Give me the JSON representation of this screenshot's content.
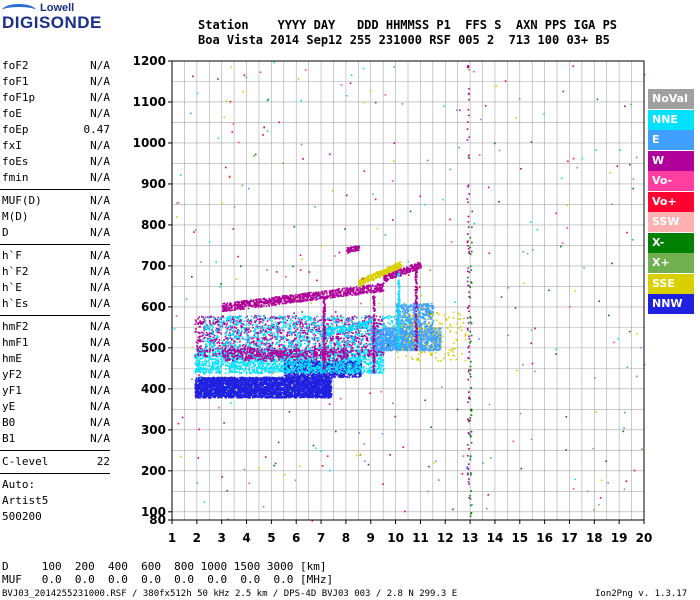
{
  "logo": {
    "line1": "Lowell",
    "line2": "DIGISONDE"
  },
  "header": {
    "line1": "Station    YYYY DAY   DDD HHMMSS P1  FFS S  AXN PPS IGA PS",
    "line2": "Boa Vista 2014 Sep12 255 231000 RSF 005 2  713 100 03+ B5"
  },
  "params_group1": [
    {
      "name": "foF2",
      "value": "N/A"
    },
    {
      "name": "foF1",
      "value": "N/A"
    },
    {
      "name": "foF1p",
      "value": "N/A"
    },
    {
      "name": "foE",
      "value": "N/A"
    },
    {
      "name": "foEp",
      "value": "0.47"
    },
    {
      "name": "fxI",
      "value": "N/A"
    },
    {
      "name": "foEs",
      "value": "N/A"
    },
    {
      "name": "fmin",
      "value": "N/A"
    }
  ],
  "params_group2": [
    {
      "name": "MUF(D)",
      "value": "N/A"
    },
    {
      "name": "M(D)",
      "value": "N/A"
    },
    {
      "name": "D",
      "value": "N/A"
    }
  ],
  "params_group3": [
    {
      "name": "h`F",
      "value": "N/A"
    },
    {
      "name": "h`F2",
      "value": "N/A"
    },
    {
      "name": "h`E",
      "value": "N/A"
    },
    {
      "name": "h`Es",
      "value": "N/A"
    }
  ],
  "params_group4": [
    {
      "name": "hmF2",
      "value": "N/A"
    },
    {
      "name": "hmF1",
      "value": "N/A"
    },
    {
      "name": "hmE",
      "value": "N/A"
    },
    {
      "name": "yF2",
      "value": "N/A"
    },
    {
      "name": "yF1",
      "value": "N/A"
    },
    {
      "name": "yE",
      "value": "N/A"
    },
    {
      "name": "B0",
      "value": "N/A"
    },
    {
      "name": "B1",
      "value": "N/A"
    }
  ],
  "clevel": {
    "name": "C-level",
    "value": "22"
  },
  "auto_info": [
    "Auto:",
    "Artist5",
    "500200"
  ],
  "footer": {
    "d_row": "D     100  200  400  600  800 1000 1500 3000 [km]",
    "muf_row": "MUF   0.0  0.0  0.0  0.0  0.0  0.0  0.0  0.0 [MHz]",
    "info": "BVJ03_2014255231000.RSF / 380fx512h 50 kHz 2.5 km / DPS-4D BVJ03 003 / 2.8 N 299.3 E",
    "version": "Ion2Png v. 1.3.17"
  },
  "chart_data": {
    "type": "scatter",
    "xlabel": "",
    "ylabel": "",
    "xlim": [
      1,
      20
    ],
    "ylim": [
      80,
      1200
    ],
    "x_ticks": [
      1,
      2,
      3,
      4,
      5,
      6,
      7,
      8,
      9,
      10,
      11,
      12,
      13,
      14,
      15,
      16,
      17,
      18,
      19,
      20
    ],
    "y_ticks": [
      80,
      100,
      200,
      300,
      400,
      500,
      600,
      700,
      800,
      900,
      1000,
      1100,
      1200
    ],
    "grid": true,
    "legend_placement": "right",
    "series": [
      {
        "name": "NoVal",
        "color": "#a0a0a0"
      },
      {
        "name": "NNE",
        "color": "#00e0ff"
      },
      {
        "name": "E",
        "color": "#3fa0ff"
      },
      {
        "name": "W",
        "color": "#b0009a"
      },
      {
        "name": "Vo-",
        "color": "#ff3fa0"
      },
      {
        "name": "Vo+",
        "color": "#ff0030"
      },
      {
        "name": "SSW",
        "color": "#ffb0b0"
      },
      {
        "name": "X-",
        "color": "#008000"
      },
      {
        "name": "X+",
        "color": "#70b050"
      },
      {
        "name": "SSE",
        "color": "#d8d000"
      },
      {
        "name": "NNW",
        "color": "#2020e0"
      }
    ],
    "regions": [
      {
        "series": "NNW",
        "x": [
          1.9,
          7.4
        ],
        "y": [
          380,
          430
        ],
        "density": 3500
      },
      {
        "series": "NNW",
        "x": [
          5.5,
          8.6
        ],
        "y": [
          430,
          470
        ],
        "density": 900
      },
      {
        "series": "NNE",
        "x": [
          1.9,
          9.5
        ],
        "y": [
          440,
          500
        ],
        "density": 1800
      },
      {
        "series": "W",
        "x": [
          1.9,
          9.5
        ],
        "y": [
          480,
          580
        ],
        "density": 1300
      },
      {
        "series": "NNE",
        "x": [
          2.2,
          11.0
        ],
        "y": [
          500,
          580
        ],
        "density": 900
      },
      {
        "series": "E",
        "x": [
          9.0,
          11.8
        ],
        "y": [
          495,
          550
        ],
        "density": 1200
      },
      {
        "series": "E",
        "x": [
          10.0,
          11.5
        ],
        "y": [
          550,
          610
        ],
        "density": 400
      },
      {
        "series": "W",
        "x": [
          3.0,
          8.0
        ],
        "y": [
          470,
          500
        ],
        "density": 400
      },
      {
        "series": "SSE",
        "x": [
          10.0,
          12.8
        ],
        "y": [
          470,
          590
        ],
        "density": 150
      }
    ],
    "traces": [
      {
        "series": "W",
        "from": [
          3.0,
          600
        ],
        "to": [
          9.5,
          650
        ],
        "spread": 10,
        "count": 900
      },
      {
        "series": "W",
        "from": [
          8.0,
          740
        ],
        "to": [
          8.5,
          745
        ],
        "spread": 6,
        "count": 80
      },
      {
        "series": "SSE",
        "from": [
          8.5,
          660
        ],
        "to": [
          10.2,
          705
        ],
        "spread": 8,
        "count": 300
      },
      {
        "series": "W",
        "from": [
          9.5,
          670
        ],
        "to": [
          11.0,
          705
        ],
        "spread": 8,
        "count": 200
      },
      {
        "series": "NNE",
        "from": [
          7.0,
          540
        ],
        "to": [
          9.0,
          560
        ],
        "spread": 8,
        "count": 200
      }
    ],
    "vertical_lines": [
      {
        "series": "W",
        "x": 7.1,
        "y": [
          450,
          620
        ],
        "count": 120
      },
      {
        "series": "W",
        "x": 9.1,
        "y": [
          440,
          630
        ],
        "count": 120
      },
      {
        "series": "NNE",
        "x": 10.1,
        "y": [
          500,
          690
        ],
        "count": 120
      },
      {
        "series": "W",
        "x": 10.8,
        "y": [
          490,
          700
        ],
        "count": 120
      },
      {
        "series": "W",
        "x": 12.9,
        "y": [
          130,
          1200
        ],
        "count": 80
      },
      {
        "series": "X-",
        "x": 13.0,
        "y": [
          90,
          800
        ],
        "count": 50
      }
    ],
    "scattered_noise": {
      "x": [
        1,
        20
      ],
      "y": [
        80,
        1200
      ],
      "count": 340
    }
  }
}
